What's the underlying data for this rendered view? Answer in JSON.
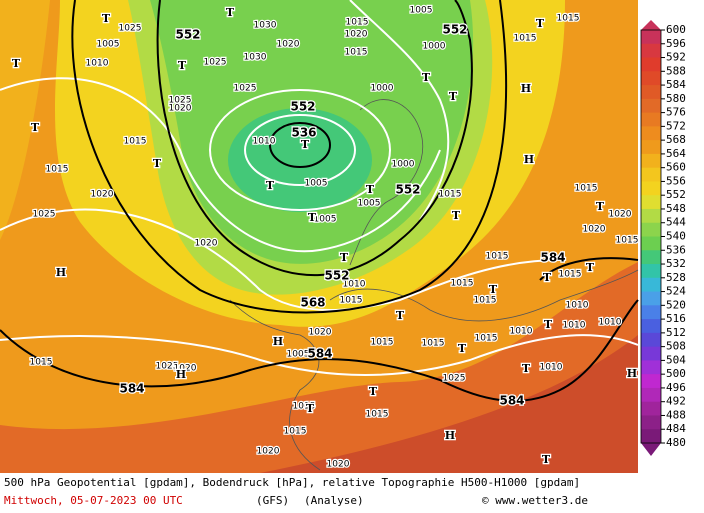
{
  "map": {
    "height_labels": [
      552,
      552,
      552,
      536,
      552,
      552,
      568,
      584,
      584,
      584,
      584
    ],
    "pressure_labels": [
      1005,
      1010,
      1025,
      1030,
      1020,
      1030,
      1025,
      1025,
      1025,
      1020,
      1015,
      1020,
      1015,
      1005,
      1000,
      1000,
      1010,
      1005,
      1000,
      1005,
      1005,
      1015,
      1015,
      1015,
      1020,
      1025,
      1020,
      1010,
      1015,
      1020,
      1015,
      1015,
      1015,
      1015,
      1015,
      1015,
      1015,
      1010,
      1010,
      1010,
      1015,
      1020,
      1020,
      1015,
      1015,
      1015,
      1015,
      1025,
      1020,
      1025,
      1015,
      1015,
      1015,
      1020,
      1020,
      1010,
      1010,
      1005
    ],
    "centers": [
      "T",
      "T",
      "H",
      "T",
      "T",
      "T",
      "T",
      "T",
      "T",
      "H",
      "H",
      "T",
      "T",
      "T",
      "T",
      "T",
      "T",
      "T",
      "T",
      "T",
      "T",
      "T",
      "T",
      "T",
      "H",
      "H",
      "T",
      "T",
      "H",
      "T",
      "T",
      "H",
      "T"
    ],
    "colorbar": {
      "ticks": [
        600,
        596,
        592,
        588,
        584,
        580,
        576,
        572,
        568,
        564,
        560,
        556,
        552,
        548,
        544,
        540,
        536,
        532,
        528,
        524,
        520,
        516,
        512,
        508,
        504,
        500,
        496,
        492,
        488,
        484,
        480
      ],
      "colors": [
        "#c8325a",
        "#d83840",
        "#e03c2c",
        "#e04a28",
        "#e05a26",
        "#e26a27",
        "#e87a22",
        "#ee8c1e",
        "#ef9a1c",
        "#f2b11c",
        "#f3c61e",
        "#f3d31f",
        "#e0de30",
        "#b2db45",
        "#8cd44c",
        "#6ccf50",
        "#44c878",
        "#32c4a8",
        "#38b8d8",
        "#4aa0e8",
        "#4a80e8",
        "#4a60e0",
        "#5a48d8",
        "#7838d8",
        "#a030d8",
        "#c028d0",
        "#b028b8",
        "#a0249c",
        "#8c2088",
        "#7a1a78"
      ]
    }
  },
  "footer": {
    "title": "500 hPa Geopotential [gpdam], Bodendruck [hPa], relative Topographie H500-H1000 [gpdam]",
    "date": "Mittwoch, 05-07-2023  00 UTC",
    "model": "(GFS)",
    "run": "(Analyse)",
    "credit": "© www.wetter3.de"
  }
}
